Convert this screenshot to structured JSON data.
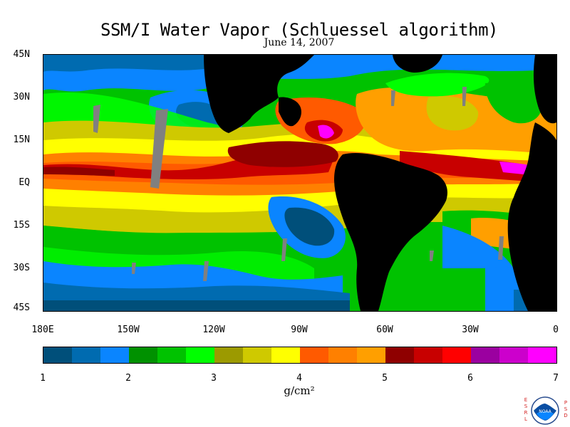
{
  "title": "SSM/I Water Vapor (Schluessel algorithm)",
  "date": "June 14, 2007",
  "latitude_labels": [
    "45N",
    "30N",
    "15N",
    "EQ",
    "15S",
    "30S",
    "45S"
  ],
  "longitude_labels": [
    "180E",
    "150W",
    "120W",
    "90W",
    "60W",
    "30W",
    "0"
  ],
  "colorbar": {
    "tick_labels": [
      "1",
      "2",
      "3",
      "4",
      "5",
      "6",
      "7"
    ],
    "units": "g/cm²",
    "colors": [
      "#004f7a",
      "#006bb0",
      "#0a85ff",
      "#009100",
      "#00c200",
      "#00ff00",
      "#9c9a00",
      "#cfc900",
      "#ffff00",
      "#ff5a00",
      "#ff8000",
      "#ff9f00",
      "#8f0000",
      "#c80000",
      "#ff0000",
      "#9b00a0",
      "#cc00cc",
      "#ff00ff"
    ]
  },
  "logo": {
    "text": "NOAA",
    "left_letters": [
      "E",
      "S",
      "R",
      "L"
    ],
    "right_letters": [
      "P",
      "S",
      "D"
    ]
  }
}
